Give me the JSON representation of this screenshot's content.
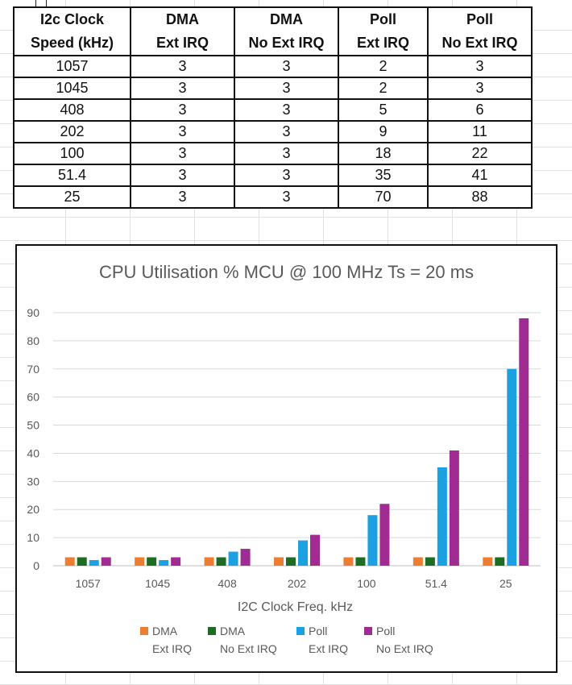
{
  "table": {
    "headers": [
      [
        "I2c Clock",
        "Speed (kHz)"
      ],
      [
        "DMA",
        "Ext IRQ"
      ],
      [
        "DMA",
        "No Ext IRQ"
      ],
      [
        "Poll",
        "Ext IRQ"
      ],
      [
        "Poll",
        "No Ext IRQ"
      ]
    ],
    "rows": [
      [
        "1057",
        "3",
        "3",
        "2",
        "3"
      ],
      [
        "1045",
        "3",
        "3",
        "2",
        "3"
      ],
      [
        "408",
        "3",
        "3",
        "5",
        "6"
      ],
      [
        "202",
        "3",
        "3",
        "9",
        "11"
      ],
      [
        "100",
        "3",
        "3",
        "18",
        "22"
      ],
      [
        "51.4",
        "3",
        "3",
        "35",
        "41"
      ],
      [
        "25",
        "3",
        "3",
        "70",
        "88"
      ]
    ]
  },
  "chart_data": {
    "type": "bar",
    "title": "CPU Utilisation %  MCU @ 100 MHz Ts = 20 ms",
    "xlabel": "I2C Clock Freq. kHz",
    "ylabel": "",
    "categories": [
      "1057",
      "1045",
      "408",
      "202",
      "100",
      "51.4",
      "25"
    ],
    "ylim": [
      0,
      90
    ],
    "yticks": [
      0,
      10,
      20,
      30,
      40,
      50,
      60,
      70,
      80,
      90
    ],
    "grid": true,
    "legend_position": "bottom",
    "series": [
      {
        "name": [
          "DMA",
          "Ext IRQ"
        ],
        "color": "#ED7D31",
        "values": [
          3,
          3,
          3,
          3,
          3,
          3,
          3
        ]
      },
      {
        "name": [
          "DMA",
          "No Ext IRQ"
        ],
        "color": "#1E6B24",
        "values": [
          3,
          3,
          3,
          3,
          3,
          3,
          3
        ]
      },
      {
        "name": [
          "Poll",
          "Ext IRQ"
        ],
        "color": "#1BA1E2",
        "values": [
          2,
          2,
          5,
          9,
          18,
          35,
          70
        ]
      },
      {
        "name": [
          "Poll",
          "No Ext IRQ"
        ],
        "color": "#A02B93",
        "values": [
          3,
          3,
          6,
          11,
          22,
          41,
          88
        ]
      }
    ]
  }
}
